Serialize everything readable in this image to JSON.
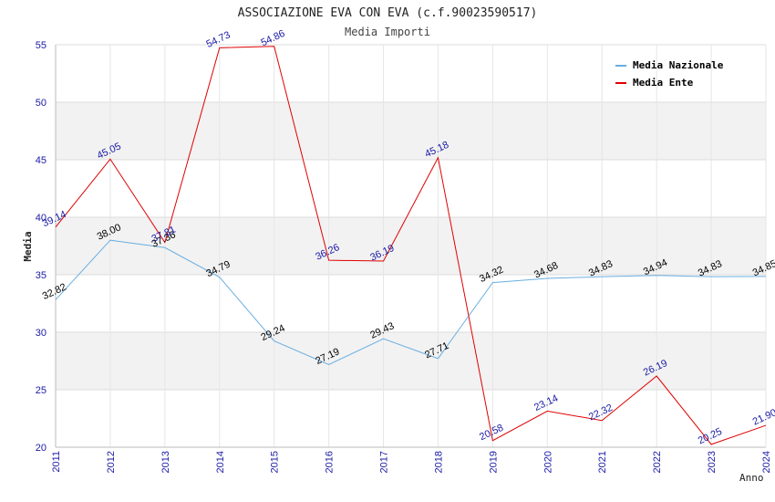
{
  "chart_data": {
    "type": "line",
    "title": "ASSOCIAZIONE EVA CON EVA (c.f.90023590517)",
    "subtitle": "Media Importi",
    "xlabel": "Anno",
    "ylabel": "Media",
    "x": [
      "2011",
      "2012",
      "2013",
      "2014",
      "2015",
      "2016",
      "2017",
      "2018",
      "2019",
      "2020",
      "2021",
      "2022",
      "2023",
      "2024"
    ],
    "ylim": [
      20,
      55
    ],
    "yticks": [
      20,
      25,
      30,
      35,
      40,
      45,
      50,
      55
    ],
    "grid": true,
    "legend_position": "top-right",
    "series": [
      {
        "name": "Media Nazionale",
        "color": "#6aaee0",
        "values": [
          32.82,
          38.0,
          37.36,
          34.79,
          29.24,
          27.19,
          29.43,
          27.71,
          34.32,
          34.68,
          34.83,
          34.94,
          34.83,
          34.85
        ],
        "labels": [
          "32.82",
          "38.00",
          "37.36",
          "34.79",
          "29.24",
          "27.19",
          "29.43",
          "27.71",
          "34.32",
          "34.68",
          "34.83",
          "34.94",
          "34.83",
          "34.85"
        ]
      },
      {
        "name": "Media Ente",
        "color": "#e00000",
        "values": [
          39.14,
          45.05,
          37.81,
          54.73,
          54.86,
          36.26,
          36.19,
          45.18,
          20.58,
          23.14,
          22.32,
          26.19,
          20.25,
          21.9
        ],
        "labels": [
          "39.14",
          "45.05",
          "37.81",
          "54.73",
          "54.86",
          "36.26",
          "36.19",
          "45.18",
          "20.58",
          "23.14",
          "22.32",
          "26.19",
          "20.25",
          "21.90"
        ]
      }
    ]
  }
}
